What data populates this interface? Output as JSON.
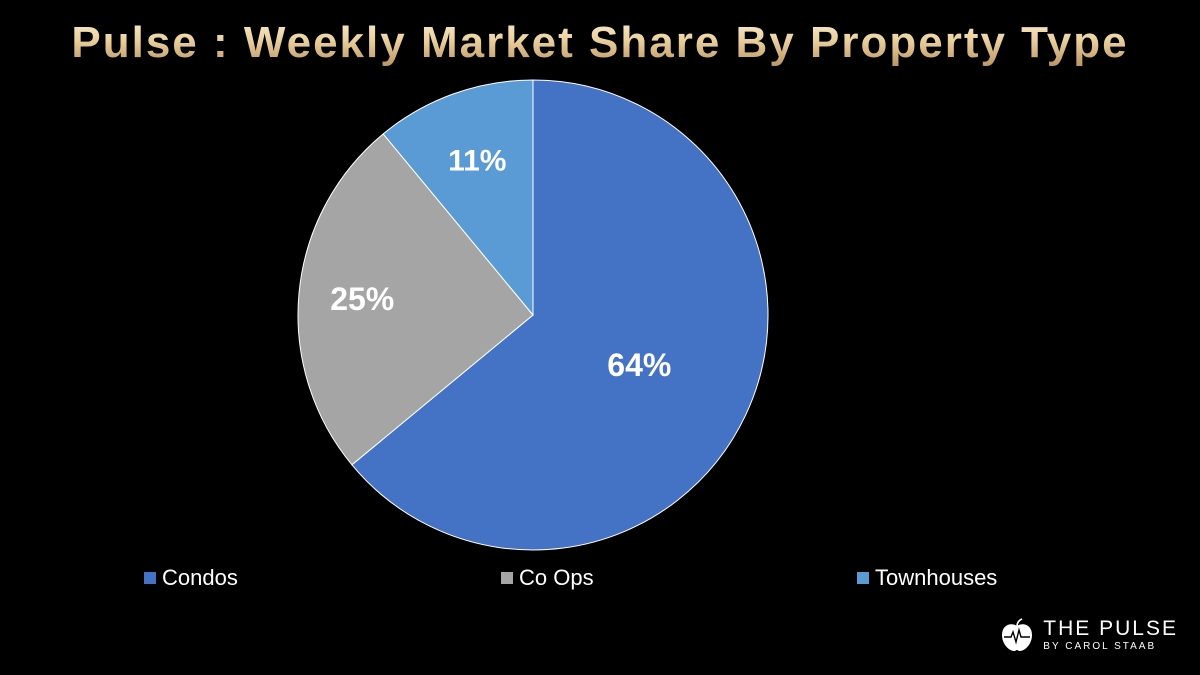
{
  "chart_data": {
    "type": "pie",
    "title": "Pulse : Weekly Market Share By Property Type",
    "categories": [
      "Condos",
      "Co Ops",
      "Townhouses"
    ],
    "values": [
      64,
      25,
      11
    ],
    "data_labels": [
      "64%",
      "25%",
      "11%"
    ],
    "colors": [
      "#4472c4",
      "#a5a5a5",
      "#5b9bd5"
    ],
    "legend_position": "bottom"
  },
  "logo": {
    "name": "THE PULSE",
    "subtitle": "BY CAROL STAAB",
    "icon": "apple-pulse-icon"
  },
  "colors": {
    "background": "#000000",
    "title_gold": "#e8d3a8",
    "slice_border": "#ffffff"
  }
}
